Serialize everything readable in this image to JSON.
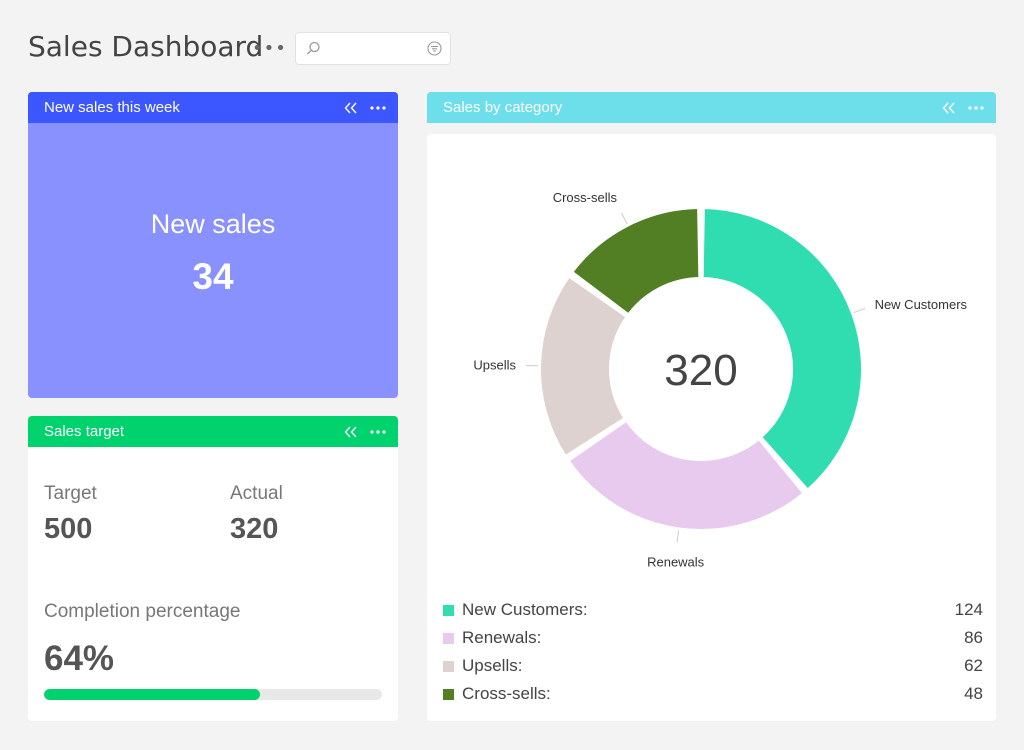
{
  "header": {
    "title": "Sales Dashboard",
    "more_icon": "more-horizontal-icon",
    "search": {
      "placeholder": "",
      "value": "",
      "icon": "search-icon",
      "filter_icon": "filter-icon"
    }
  },
  "widgets": {
    "new_sales": {
      "title": "New sales this week",
      "label": "New sales",
      "value": "34",
      "header_color": "#3c57ff",
      "body_color": "#8891fe"
    },
    "sales_target": {
      "title": "Sales target",
      "target_label": "Target",
      "target_value": "500",
      "actual_label": "Actual",
      "actual_value": "320",
      "completion_label": "Completion percentage",
      "completion_value": "64%",
      "completion_fraction": 0.64,
      "header_color": "#00d36d"
    },
    "sales_by_category": {
      "title": "Sales by category",
      "header_color": "#6ddfeb",
      "total": "320"
    }
  },
  "chart_data": {
    "type": "pie",
    "categories": [
      "New Customers",
      "Renewals",
      "Upsells",
      "Cross-sells"
    ],
    "values": [
      124,
      86,
      62,
      48
    ],
    "colors": [
      "#2fddb1",
      "#e8caef",
      "#ddd2cf",
      "#527f23"
    ],
    "center_label": "320",
    "slice_labels": [
      "New Customers",
      "Renewals",
      "Upsells",
      "Cross-sells"
    ],
    "legend": [
      {
        "name": "New Customers:",
        "value": "124"
      },
      {
        "name": "Renewals:",
        "value": "86"
      },
      {
        "name": "Upsells:",
        "value": "62"
      },
      {
        "name": "Cross-sells:",
        "value": "48"
      }
    ],
    "legend_position": "bottom"
  }
}
